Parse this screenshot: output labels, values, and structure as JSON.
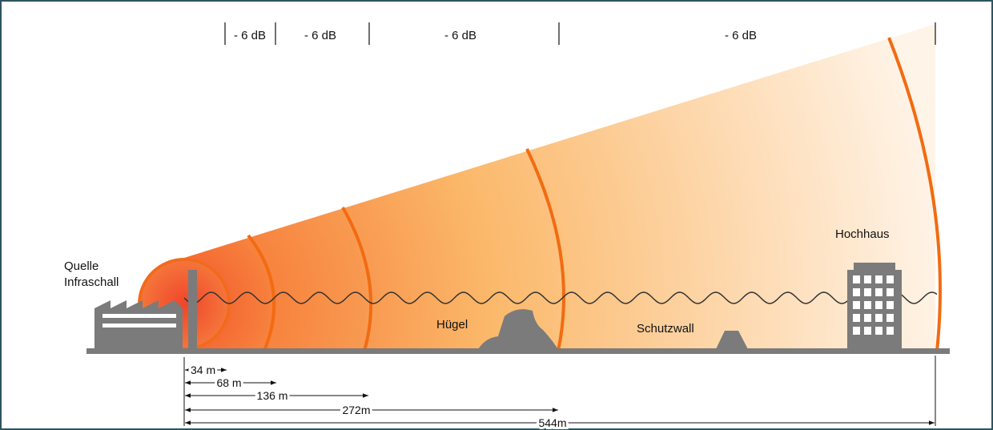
{
  "db_labels": [
    "- 6 dB",
    "- 6 dB",
    "- 6 dB",
    "- 6 dB"
  ],
  "source": {
    "lines": [
      "Quelle",
      "Infraschall"
    ]
  },
  "labels": {
    "hill": "Hügel",
    "wall": "Schutzwall",
    "building": "Hochhaus"
  },
  "distances": [
    "34 m",
    "68 m",
    "136 m",
    "272m",
    "544m"
  ]
}
